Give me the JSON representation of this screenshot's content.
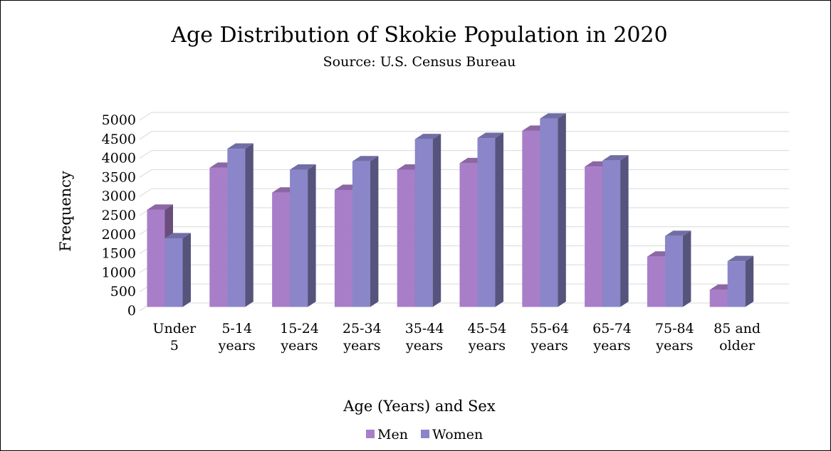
{
  "chart_data": {
    "type": "bar",
    "title": "Age Distribution of Skokie Population in 2020",
    "subtitle": "Source: U.S. Census Bureau",
    "xlabel": "Age (Years) and Sex",
    "ylabel": "Frequency",
    "ylim": [
      0,
      5000
    ],
    "yticks": [
      0,
      500,
      1000,
      1500,
      2000,
      2500,
      3000,
      3500,
      4000,
      4500,
      5000
    ],
    "categories": [
      [
        "Under",
        "5"
      ],
      [
        "5-14",
        "years"
      ],
      [
        "15-24",
        "years"
      ],
      [
        "25-34",
        "years"
      ],
      [
        "35-44",
        "years"
      ],
      [
        "45-54",
        "years"
      ],
      [
        "55-64",
        "years"
      ],
      [
        "65-74",
        "years"
      ],
      [
        "75-84",
        "years"
      ],
      [
        "85 and",
        "older"
      ]
    ],
    "series": [
      {
        "name": "Men",
        "color": "#a97ec8",
        "values": [
          2550,
          3650,
          3000,
          3070,
          3600,
          3770,
          4620,
          3680,
          1320,
          450
        ]
      },
      {
        "name": "Women",
        "color": "#8a86c9",
        "values": [
          1800,
          4150,
          3600,
          3820,
          4400,
          4430,
          4940,
          3840,
          1860,
          1200
        ]
      }
    ],
    "legend_position": "bottom",
    "grid": true,
    "style": "3d-column"
  }
}
